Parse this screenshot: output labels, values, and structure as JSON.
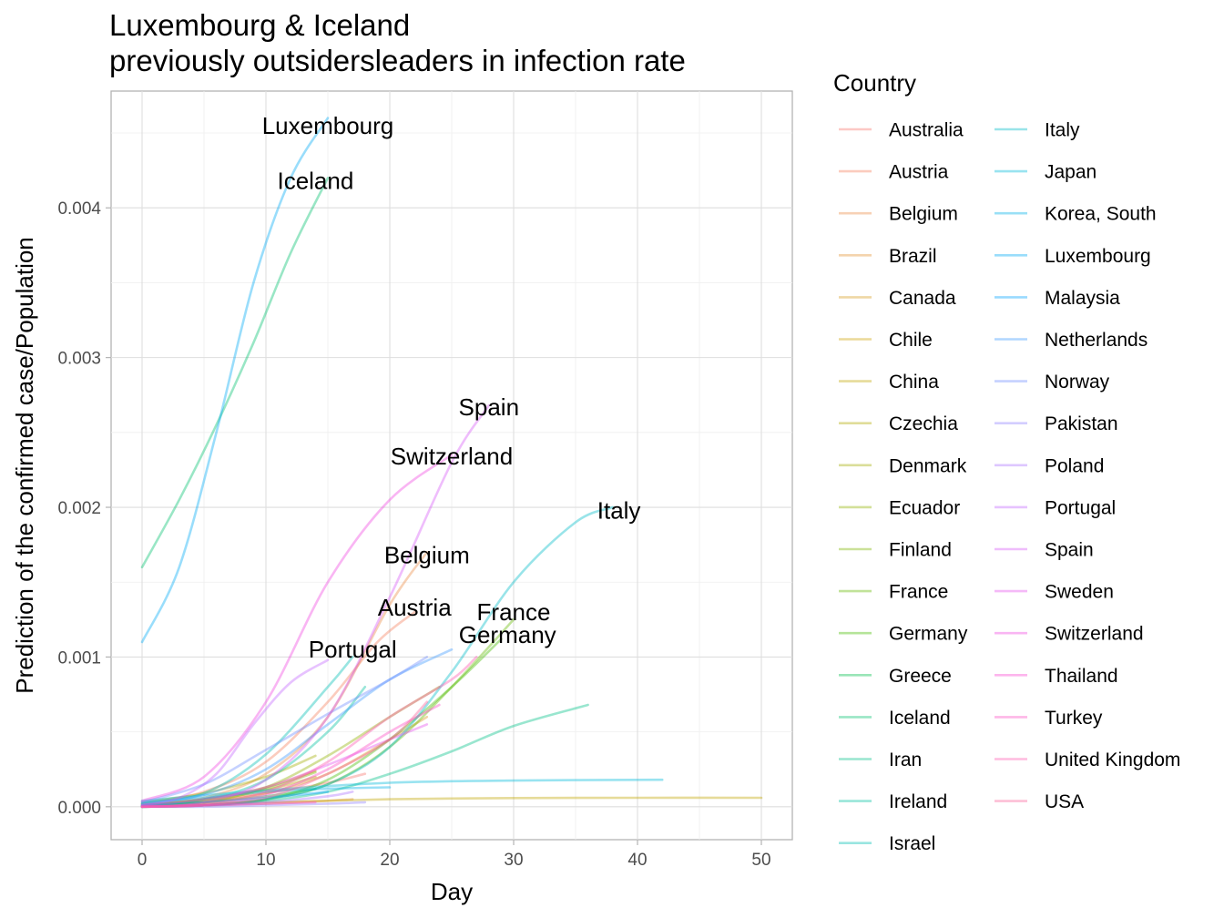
{
  "chart_data": {
    "type": "line",
    "title_lines": [
      "Luxembourg & Iceland",
      "previously outsidersleaders in infection rate"
    ],
    "xlabel": "Day",
    "ylabel": "Prediction of the confirmed case/Population",
    "xlim": [
      -2.5,
      52.5
    ],
    "ylim": [
      -0.00022,
      0.00478
    ],
    "x_ticks": [
      0,
      10,
      20,
      30,
      40,
      50
    ],
    "x_tick_labels": [
      "0",
      "10",
      "20",
      "30",
      "40",
      "50"
    ],
    "y_ticks": [
      0,
      0.001,
      0.002,
      0.003,
      0.004
    ],
    "y_tick_labels": [
      "0.000",
      "0.001",
      "0.002",
      "0.003",
      "0.004"
    ],
    "grid": true,
    "legend": {
      "title": "Country",
      "placement": "right"
    },
    "series": [
      {
        "name": "Australia",
        "color": "#F8766D",
        "points": [
          [
            0,
            1e-05
          ],
          [
            5,
            4e-05
          ],
          [
            10,
            9e-05
          ],
          [
            15,
            0.00016
          ],
          [
            18,
            0.00022
          ]
        ]
      },
      {
        "name": "Austria",
        "color": "#F47F5C",
        "points": [
          [
            0,
            2e-05
          ],
          [
            5,
            0.0001
          ],
          [
            10,
            0.0003
          ],
          [
            15,
            0.0007
          ],
          [
            19,
            0.0011
          ],
          [
            22,
            0.0013
          ]
        ]
      },
      {
        "name": "Belgium",
        "color": "#EC8B46",
        "points": [
          [
            0,
            1e-05
          ],
          [
            5,
            6e-05
          ],
          [
            10,
            0.00022
          ],
          [
            15,
            0.0006
          ],
          [
            20,
            0.00135
          ],
          [
            23,
            0.0017
          ]
        ]
      },
      {
        "name": "Brazil",
        "color": "#E39331",
        "points": [
          [
            0,
            0.0
          ],
          [
            5,
            1e-05
          ],
          [
            10,
            2e-05
          ],
          [
            15,
            4e-05
          ],
          [
            17,
            5e-05
          ]
        ]
      },
      {
        "name": "Canada",
        "color": "#D89A1F",
        "points": [
          [
            0,
            1e-05
          ],
          [
            5,
            3e-05
          ],
          [
            10,
            9e-05
          ],
          [
            15,
            0.00022
          ],
          [
            20,
            0.00045
          ],
          [
            23,
            0.0006
          ]
        ]
      },
      {
        "name": "Chile",
        "color": "#CCA000",
        "points": [
          [
            0,
            1e-05
          ],
          [
            5,
            5e-05
          ],
          [
            10,
            0.00013
          ],
          [
            14,
            0.00024
          ]
        ]
      },
      {
        "name": "China",
        "color": "#C0A500",
        "points": [
          [
            0,
            2e-05
          ],
          [
            10,
            3e-05
          ],
          [
            20,
            5e-05
          ],
          [
            30,
            5.8e-05
          ],
          [
            40,
            6e-05
          ],
          [
            50,
            6e-05
          ]
        ]
      },
      {
        "name": "Czechia",
        "color": "#B1A900",
        "points": [
          [
            0,
            1e-05
          ],
          [
            5,
            4e-05
          ],
          [
            10,
            0.00011
          ],
          [
            14,
            0.0002
          ]
        ]
      },
      {
        "name": "Denmark",
        "color": "#A2AD00",
        "points": [
          [
            0,
            3e-05
          ],
          [
            5,
            9e-05
          ],
          [
            10,
            0.0002
          ],
          [
            14,
            0.00034
          ]
        ]
      },
      {
        "name": "Ecuador",
        "color": "#90B100",
        "points": [
          [
            0,
            0.0
          ],
          [
            5,
            3e-05
          ],
          [
            10,
            0.00013
          ],
          [
            15,
            0.00034
          ],
          [
            20,
            0.0006
          ],
          [
            24,
            0.0008
          ]
        ]
      },
      {
        "name": "Finland",
        "color": "#7CB400",
        "points": [
          [
            0,
            1e-05
          ],
          [
            5,
            5e-05
          ],
          [
            10,
            0.00012
          ],
          [
            14,
            0.00023
          ]
        ]
      },
      {
        "name": "France",
        "color": "#64B800",
        "points": [
          [
            0,
            0.0
          ],
          [
            5,
            1e-05
          ],
          [
            10,
            5e-05
          ],
          [
            15,
            0.00015
          ],
          [
            20,
            0.0004
          ],
          [
            25,
            0.0008
          ],
          [
            30,
            0.00125
          ]
        ]
      },
      {
        "name": "Germany",
        "color": "#45BC00",
        "points": [
          [
            0,
            0.0
          ],
          [
            5,
            1e-05
          ],
          [
            10,
            5e-05
          ],
          [
            15,
            0.00018
          ],
          [
            20,
            0.00045
          ],
          [
            25,
            0.0008
          ],
          [
            29,
            0.00112
          ]
        ]
      },
      {
        "name": "Greece",
        "color": "#00BE4A",
        "points": [
          [
            0,
            1e-05
          ],
          [
            5,
            3e-05
          ],
          [
            10,
            7e-05
          ],
          [
            14,
            0.00012
          ]
        ]
      },
      {
        "name": "Iceland",
        "color": "#00C06D",
        "points": [
          [
            0,
            0.0016
          ],
          [
            3,
            0.00205
          ],
          [
            6,
            0.00255
          ],
          [
            9,
            0.0031
          ],
          [
            12,
            0.0037
          ],
          [
            15,
            0.0042
          ]
        ]
      },
      {
        "name": "Iran",
        "color": "#00C188",
        "points": [
          [
            0,
            0.0
          ],
          [
            5,
            1e-05
          ],
          [
            10,
            4e-05
          ],
          [
            15,
            0.0001
          ],
          [
            20,
            0.00022
          ],
          [
            25,
            0.00037
          ],
          [
            30,
            0.00054
          ],
          [
            36,
            0.00068
          ]
        ]
      },
      {
        "name": "Ireland",
        "color": "#00C1A0",
        "points": [
          [
            0,
            1e-05
          ],
          [
            5,
            5e-05
          ],
          [
            10,
            0.00018
          ],
          [
            15,
            0.0005
          ],
          [
            18,
            0.0008
          ]
        ]
      },
      {
        "name": "Israel",
        "color": "#00BFB5",
        "points": [
          [
            0,
            2e-05
          ],
          [
            5,
            9e-05
          ],
          [
            10,
            0.00035
          ],
          [
            15,
            0.0008
          ],
          [
            17,
            0.001
          ]
        ]
      },
      {
        "name": "Italy",
        "color": "#00BCC8",
        "points": [
          [
            0,
            0.0
          ],
          [
            5,
            1e-05
          ],
          [
            10,
            5e-05
          ],
          [
            15,
            0.00015
          ],
          [
            20,
            0.0004
          ],
          [
            25,
            0.0009
          ],
          [
            30,
            0.0015
          ],
          [
            35,
            0.0019
          ],
          [
            38,
            0.002
          ]
        ]
      },
      {
        "name": "Japan",
        "color": "#00B8D9",
        "points": [
          [
            0,
            4e-05
          ],
          [
            10,
            0.00011
          ],
          [
            20,
            0.00016
          ],
          [
            30,
            0.000175
          ],
          [
            42,
            0.00018
          ]
        ]
      },
      {
        "name": "Korea, South",
        "color": "#00B2E8",
        "points": [
          [
            0,
            3e-05
          ],
          [
            5,
            6e-05
          ],
          [
            10,
            0.0001
          ],
          [
            15,
            0.00012
          ],
          [
            20,
            0.00013
          ]
        ]
      },
      {
        "name": "Luxembourg",
        "color": "#00ABF4",
        "points": [
          [
            0,
            0.0011
          ],
          [
            3,
            0.0016
          ],
          [
            6,
            0.0025
          ],
          [
            9,
            0.0035
          ],
          [
            12,
            0.0042
          ],
          [
            15,
            0.0046
          ]
        ]
      },
      {
        "name": "Malaysia",
        "color": "#00A2FE",
        "points": [
          [
            0,
            1e-05
          ],
          [
            5,
            3e-05
          ],
          [
            10,
            6e-05
          ],
          [
            15,
            0.0001
          ]
        ]
      },
      {
        "name": "Netherlands",
        "color": "#3B98FF",
        "points": [
          [
            0,
            2e-05
          ],
          [
            5,
            8e-05
          ],
          [
            10,
            0.00025
          ],
          [
            15,
            0.00055
          ],
          [
            20,
            0.00085
          ],
          [
            25,
            0.00105
          ]
        ]
      },
      {
        "name": "Norway",
        "color": "#6D8DFF",
        "points": [
          [
            0,
            3e-05
          ],
          [
            5,
            0.00015
          ],
          [
            10,
            0.00038
          ],
          [
            15,
            0.00062
          ],
          [
            20,
            0.00085
          ],
          [
            23,
            0.001
          ]
        ]
      },
      {
        "name": "Pakistan",
        "color": "#9181FF",
        "points": [
          [
            0,
            0.0
          ],
          [
            5,
            0.0
          ],
          [
            10,
            1e-05
          ],
          [
            15,
            2e-05
          ],
          [
            18,
            3e-05
          ]
        ]
      },
      {
        "name": "Poland",
        "color": "#AC74FF",
        "points": [
          [
            0,
            0.0
          ],
          [
            5,
            1e-05
          ],
          [
            10,
            3e-05
          ],
          [
            15,
            7e-05
          ],
          [
            17,
            0.0001
          ]
        ]
      },
      {
        "name": "Portugal",
        "color": "#C466FF",
        "points": [
          [
            0,
            1e-05
          ],
          [
            3,
            6e-05
          ],
          [
            6,
            0.00022
          ],
          [
            9,
            0.00055
          ],
          [
            12,
            0.00083
          ],
          [
            15,
            0.00098
          ]
        ]
      },
      {
        "name": "Spain",
        "color": "#D75BF8",
        "points": [
          [
            0,
            0.0
          ],
          [
            5,
            3e-05
          ],
          [
            10,
            0.00018
          ],
          [
            15,
            0.0006
          ],
          [
            20,
            0.0014
          ],
          [
            25,
            0.0023
          ],
          [
            28,
            0.00268
          ]
        ]
      },
      {
        "name": "Sweden",
        "color": "#E64FEE",
        "points": [
          [
            0,
            1e-05
          ],
          [
            5,
            5e-05
          ],
          [
            10,
            0.00013
          ],
          [
            15,
            0.00028
          ],
          [
            20,
            0.00045
          ],
          [
            23,
            0.00055
          ]
        ]
      },
      {
        "name": "Switzerland",
        "color": "#F145E2",
        "points": [
          [
            0,
            4e-05
          ],
          [
            5,
            0.0002
          ],
          [
            10,
            0.0007
          ],
          [
            15,
            0.0015
          ],
          [
            20,
            0.00205
          ],
          [
            25,
            0.00235
          ]
        ]
      },
      {
        "name": "Thailand",
        "color": "#F945D3",
        "points": [
          [
            0,
            0.0
          ],
          [
            5,
            1e-05
          ],
          [
            10,
            2e-05
          ],
          [
            14,
            3e-05
          ]
        ]
      },
      {
        "name": "Turkey",
        "color": "#FD4BC2",
        "points": [
          [
            0,
            0.0
          ],
          [
            5,
            1e-05
          ],
          [
            10,
            8e-05
          ],
          [
            15,
            0.00025
          ],
          [
            20,
            0.0005
          ],
          [
            24,
            0.00068
          ]
        ]
      },
      {
        "name": "United Kingdom",
        "color": "#FE55AF",
        "points": [
          [
            0,
            0.0
          ],
          [
            5,
            2e-05
          ],
          [
            10,
            0.0001
          ],
          [
            15,
            0.0003
          ],
          [
            20,
            0.0006
          ],
          [
            25,
            0.00085
          ],
          [
            27,
            0.001
          ]
        ]
      },
      {
        "name": "USA",
        "color": "#FB6099",
        "points": [
          [
            0,
            0.0
          ],
          [
            5,
            1e-05
          ],
          [
            10,
            6e-05
          ],
          [
            15,
            0.00022
          ],
          [
            20,
            0.00045
          ],
          [
            23,
            0.0007
          ]
        ]
      }
    ],
    "annotations": [
      {
        "text": "Luxembourg",
        "x": 15,
        "y": 0.00455
      },
      {
        "text": "Iceland",
        "x": 14,
        "y": 0.00418
      },
      {
        "text": "Spain",
        "x": 28,
        "y": 0.00267
      },
      {
        "text": "Switzerland",
        "x": 25,
        "y": 0.00234
      },
      {
        "text": "Italy",
        "x": 38.5,
        "y": 0.00198
      },
      {
        "text": "Belgium",
        "x": 23,
        "y": 0.00168
      },
      {
        "text": "Austria",
        "x": 22,
        "y": 0.00133
      },
      {
        "text": "France",
        "x": 30,
        "y": 0.0013
      },
      {
        "text": "Germany",
        "x": 29.5,
        "y": 0.00115
      },
      {
        "text": "Portugal",
        "x": 17,
        "y": 0.00105
      }
    ]
  }
}
